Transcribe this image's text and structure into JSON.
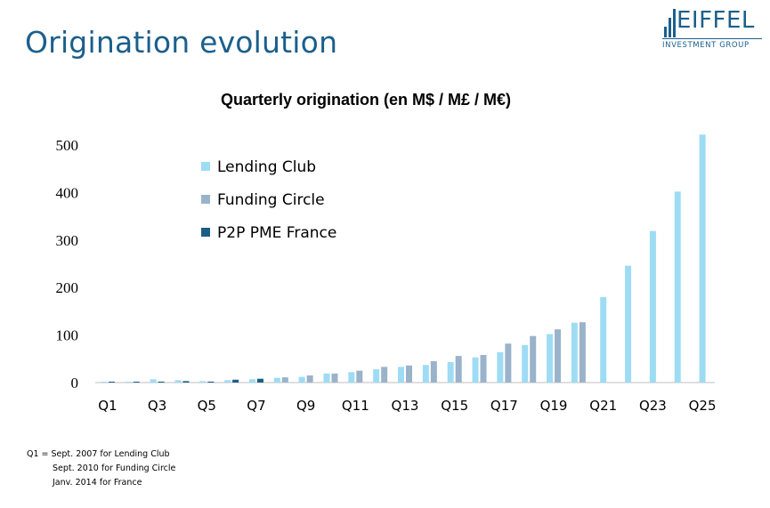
{
  "page": {
    "title": "Origination evolution",
    "logo_name": "EIFFEL",
    "logo_subtitle": "INVESTMENT GROUP"
  },
  "footnote": {
    "line1": "Q1 = Sept. 2007 for Lending Club",
    "line2": "Sept. 2010 for Funding Circle",
    "line3": "Janv. 2014 for France"
  },
  "chart_data": {
    "type": "bar",
    "title": "Quarterly origination (en M$ / M£ / M€)",
    "xlabel": "",
    "ylabel": "",
    "ylim": [
      0,
      540
    ],
    "yticks": [
      0,
      100,
      200,
      300,
      400,
      500
    ],
    "grid": false,
    "legend_position": "top-left",
    "categories": [
      "Q1",
      "Q2",
      "Q3",
      "Q4",
      "Q5",
      "Q6",
      "Q7",
      "Q8",
      "Q9",
      "Q10",
      "Q11",
      "Q12",
      "Q13",
      "Q14",
      "Q15",
      "Q16",
      "Q17",
      "Q18",
      "Q19",
      "Q20",
      "Q21",
      "Q22",
      "Q23",
      "Q24",
      "Q25"
    ],
    "tick_labels": [
      "Q1",
      "",
      "Q3",
      "",
      "Q5",
      "",
      "Q7",
      "",
      "Q9",
      "",
      "Q11",
      "",
      "Q13",
      "",
      "Q15",
      "",
      "Q17",
      "",
      "Q19",
      "",
      "Q21",
      "",
      "Q23",
      "",
      "Q25"
    ],
    "series": [
      {
        "name": "Lending Club",
        "color": "#9edcf4",
        "values": [
          1,
          1,
          7,
          5,
          3,
          5,
          7,
          10,
          12,
          19,
          22,
          28,
          33,
          37,
          43,
          53,
          64,
          79,
          102,
          126,
          180,
          246,
          319,
          402,
          522
        ]
      },
      {
        "name": "Funding Circle",
        "color": "#9ab3cb",
        "values": [
          null,
          null,
          null,
          null,
          null,
          null,
          null,
          11,
          15,
          19,
          25,
          33,
          36,
          45,
          56,
          58,
          82,
          98,
          112,
          127,
          null,
          null,
          null,
          null,
          null
        ]
      },
      {
        "name": "P2P PME France",
        "color": "#1a5e88",
        "values": [
          1,
          1,
          2,
          3,
          2,
          6,
          8,
          null,
          null,
          null,
          null,
          null,
          null,
          null,
          null,
          null,
          null,
          null,
          null,
          null,
          null,
          null,
          null,
          null,
          null
        ]
      }
    ]
  }
}
